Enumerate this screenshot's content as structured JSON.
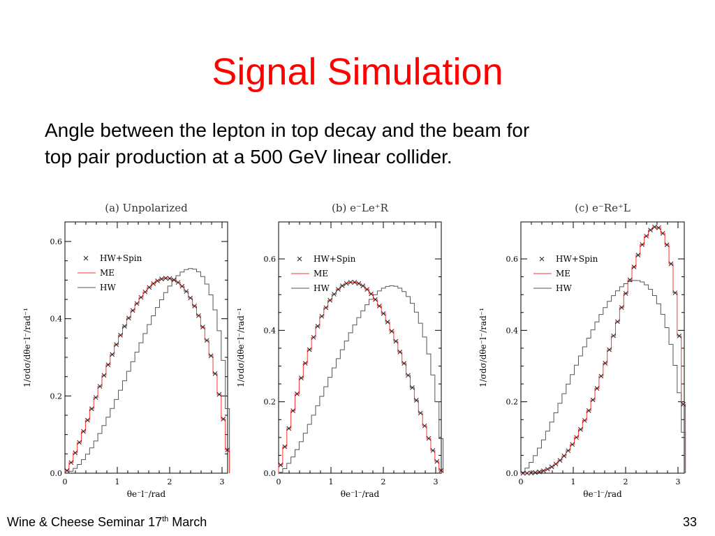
{
  "slide": {
    "title": "Signal Simulation",
    "subtitle_line1": "Angle between the lepton in top decay and the beam for",
    "subtitle_line2": "top pair production at a 500 GeV linear collider.",
    "footer_prefix": "Wine & Cheese Seminar 17",
    "footer_sup": "th",
    "footer_suffix": "  March",
    "page_number": "33"
  },
  "colors": {
    "title": "#ff0000",
    "me_line": "#ff3333",
    "hw_line": "#555555",
    "marker": "#222222"
  },
  "chart_data": [
    {
      "type": "line",
      "title": "(a) Unpolarized",
      "xlabel": "θe⁻l⁻/rad",
      "ylabel": "1/σdσ/dθe⁻l⁻/rad⁻¹",
      "xlim": [
        0,
        3.1416
      ],
      "ylim": [
        0,
        0.7
      ],
      "xticks": [
        "0",
        "1",
        "2",
        "3"
      ],
      "yticks": [
        "0.0",
        "0.2",
        "0.4",
        "0.6"
      ],
      "legend": [
        "HW+Spin",
        "ME",
        "HW"
      ],
      "shape": {
        "A": 0.505,
        "p": 1.3,
        "q": 0.8
      },
      "shape_hw": {
        "A": 0.53,
        "p": 1.8,
        "q": 0.55
      }
    },
    {
      "type": "line",
      "title": "(b) e⁻Le⁺R",
      "xlabel": "θe⁻l⁻/rad",
      "ylabel": "1/σdσ/dθe⁻l⁻/rad⁻¹",
      "xlim": [
        0,
        3.1416
      ],
      "ylim": [
        0,
        0.7
      ],
      "xticks": [
        "0",
        "1",
        "2",
        "3"
      ],
      "yticks": [
        "0.0",
        "0.2",
        "0.4",
        "0.6"
      ],
      "legend": [
        "HW+Spin",
        "ME",
        "HW"
      ],
      "shape": {
        "A": 0.535,
        "p": 1.1,
        "q": 1.35
      },
      "shape_hw": {
        "A": 0.525,
        "p": 1.55,
        "q": 0.7
      }
    },
    {
      "type": "line",
      "title": "(c) e⁻Re⁺L",
      "xlabel": "θe⁻l⁻/rad",
      "ylabel": "1/σdσ/dθe⁻l⁻/rad⁻¹",
      "xlim": [
        0,
        3.1416
      ],
      "ylim": [
        0,
        0.7
      ],
      "xticks": [
        "0",
        "1",
        "2",
        "3"
      ],
      "yticks": [
        "0.0",
        "0.2",
        "0.4",
        "0.6"
      ],
      "legend": [
        "HW+Spin",
        "ME",
        "HW"
      ],
      "shape": {
        "A": 0.69,
        "p": 3.2,
        "q": 0.7
      },
      "shape_hw": {
        "A": 0.54,
        "p": 1.5,
        "q": 0.65
      }
    }
  ]
}
